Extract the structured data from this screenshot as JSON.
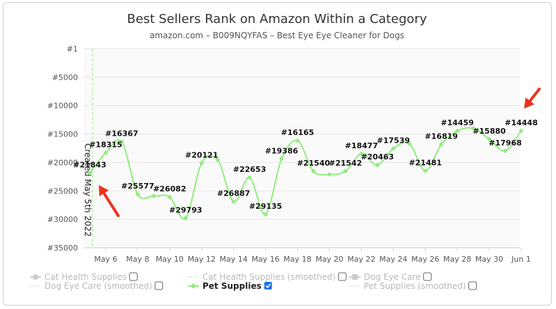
{
  "chart_data": {
    "type": "line",
    "title": "Best Sellers Rank on Amazon Within a Category",
    "subtitle": "amazon.com – B009NQYFAS – Best Eye Eye Cleaner for Dogs",
    "y_axis": {
      "reversed": true,
      "range": [
        1,
        35000
      ],
      "ticks": [
        "#1",
        "#5000",
        "#10000",
        "#15000",
        "#20000",
        "#25000",
        "#30000",
        "#35000"
      ],
      "tick_values": [
        1,
        5000,
        10000,
        15000,
        20000,
        25000,
        30000,
        35000
      ]
    },
    "x_axis": {
      "range": [
        "2022-05-05",
        "2022-06-01"
      ],
      "tick_labels": [
        "May 6",
        "May 8",
        "May 10",
        "May 12",
        "May 14",
        "May 16",
        "May 18",
        "May 20",
        "May 22",
        "May 24",
        "May 26",
        "May 28",
        "May 30",
        "Jun 1"
      ],
      "tick_dates": [
        "2022-05-06",
        "2022-05-08",
        "2022-05-10",
        "2022-05-12",
        "2022-05-14",
        "2022-05-16",
        "2022-05-18",
        "2022-05-20",
        "2022-05-22",
        "2022-05-24",
        "2022-05-26",
        "2022-05-28",
        "2022-05-30",
        "2022-06-01"
      ]
    },
    "grid": true,
    "annotation": {
      "text": "Created May 5th 2022",
      "date": "2022-05-05"
    },
    "series": [
      {
        "name": "Pet Supplies",
        "color": "#90ed7d",
        "visible": true,
        "points": [
          {
            "date": "2022-05-05",
            "rank": 21843,
            "label": "#21843"
          },
          {
            "date": "2022-05-06",
            "rank": 18315,
            "label": "#18315"
          },
          {
            "date": "2022-05-07",
            "rank": 16367,
            "label": "#16367"
          },
          {
            "date": "2022-05-08",
            "rank": 25577,
            "label": "#25577"
          },
          {
            "date": "2022-05-09",
            "rank": 25900,
            "label": ""
          },
          {
            "date": "2022-05-10",
            "rank": 26082,
            "label": "#26082"
          },
          {
            "date": "2022-05-11",
            "rank": 29793,
            "label": "#29793"
          },
          {
            "date": "2022-05-12",
            "rank": 20121,
            "label": "#20121"
          },
          {
            "date": "2022-05-13",
            "rank": 19500,
            "label": ""
          },
          {
            "date": "2022-05-14",
            "rank": 26887,
            "label": "#26887"
          },
          {
            "date": "2022-05-15",
            "rank": 22653,
            "label": "#22653"
          },
          {
            "date": "2022-05-16",
            "rank": 29135,
            "label": "#29135"
          },
          {
            "date": "2022-05-17",
            "rank": 19386,
            "label": "#19386"
          },
          {
            "date": "2022-05-18",
            "rank": 16165,
            "label": "#16165"
          },
          {
            "date": "2022-05-19",
            "rank": 21540,
            "label": "#21540"
          },
          {
            "date": "2022-05-20",
            "rank": 22100,
            "label": ""
          },
          {
            "date": "2022-05-21",
            "rank": 21542,
            "label": "#21542"
          },
          {
            "date": "2022-05-22",
            "rank": 18477,
            "label": "#18477"
          },
          {
            "date": "2022-05-23",
            "rank": 20463,
            "label": "#20463"
          },
          {
            "date": "2022-05-24",
            "rank": 17539,
            "label": "#17539"
          },
          {
            "date": "2022-05-25",
            "rank": 16700,
            "label": ""
          },
          {
            "date": "2022-05-26",
            "rank": 21481,
            "label": "#21481"
          },
          {
            "date": "2022-05-27",
            "rank": 16819,
            "label": "#16819"
          },
          {
            "date": "2022-05-28",
            "rank": 14459,
            "label": "#14459"
          },
          {
            "date": "2022-05-29",
            "rank": 14000,
            "label": ""
          },
          {
            "date": "2022-05-30",
            "rank": 15880,
            "label": "#15880"
          },
          {
            "date": "2022-05-31",
            "rank": 17968,
            "label": "#17968"
          },
          {
            "date": "2022-06-01",
            "rank": 14448,
            "label": "#14448"
          }
        ]
      }
    ],
    "legend": {
      "placement": "bottom",
      "items": [
        {
          "name": "Cat Health Supplies",
          "style": "solid-marker",
          "checked": false,
          "active": false
        },
        {
          "name": "Cat Health Supplies (smoothed)",
          "style": "dotted",
          "checked": false,
          "active": false
        },
        {
          "name": "Dog Eye Care",
          "style": "solid-square",
          "checked": false,
          "active": false
        },
        {
          "name": "Dog Eye Care (smoothed)",
          "style": "dotted",
          "checked": false,
          "active": false
        },
        {
          "name": "Pet Supplies",
          "style": "solid-marker",
          "checked": true,
          "active": true,
          "color": "#90ed7d"
        },
        {
          "name": "Pet Supplies (smoothed)",
          "style": "dotted",
          "checked": false,
          "active": false
        }
      ]
    },
    "arrows_color": "#e8351e"
  }
}
